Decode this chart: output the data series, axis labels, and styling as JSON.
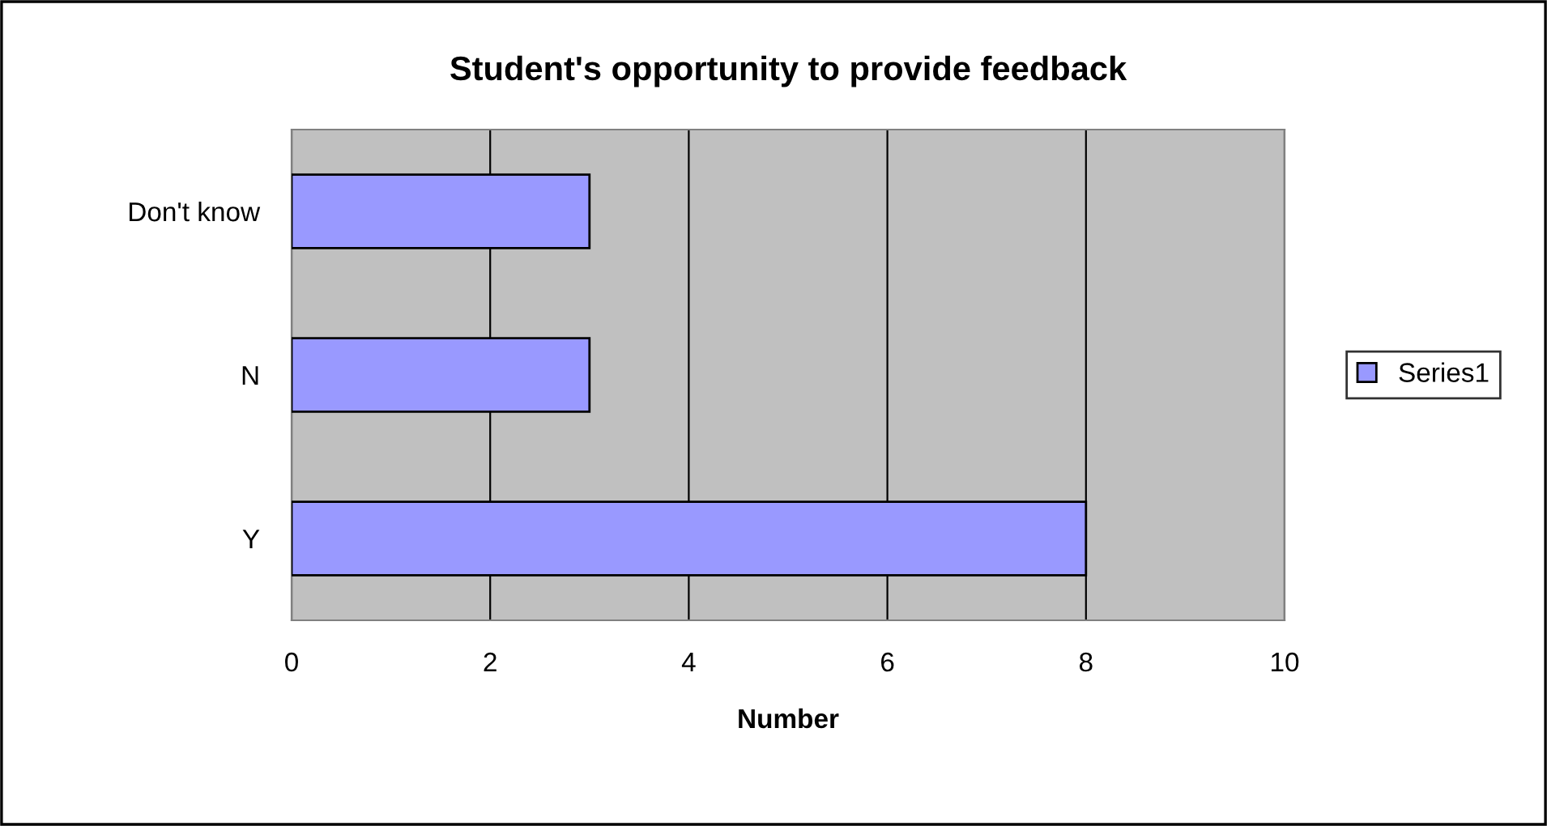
{
  "chart_data": {
    "type": "bar",
    "orientation": "horizontal",
    "title": "Student's opportunity to provide feedback",
    "xlabel": "Number",
    "categories": [
      "Don't know",
      "N",
      "Y"
    ],
    "series": [
      {
        "name": "Series1",
        "color": "#9999ff",
        "values": [
          3,
          3,
          8
        ]
      }
    ],
    "xlim": [
      0,
      10
    ],
    "xticks": [
      0,
      2,
      4,
      6,
      8,
      10
    ],
    "grid": "x",
    "legend": "right"
  }
}
